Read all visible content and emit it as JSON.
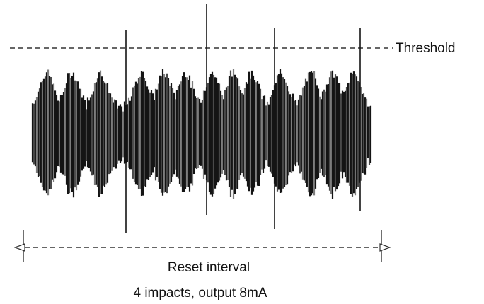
{
  "labels": {
    "threshold": "Threshold",
    "interval": "Reset interval",
    "caption": "4 impacts, output 8mA"
  },
  "impacts": {
    "count": 4
  },
  "colors": {
    "signal_dark": "#141414",
    "signal_mid": "#4a4a4a",
    "signal_light": "#7d7d7d",
    "line": "#333333",
    "text": "#111111"
  }
}
